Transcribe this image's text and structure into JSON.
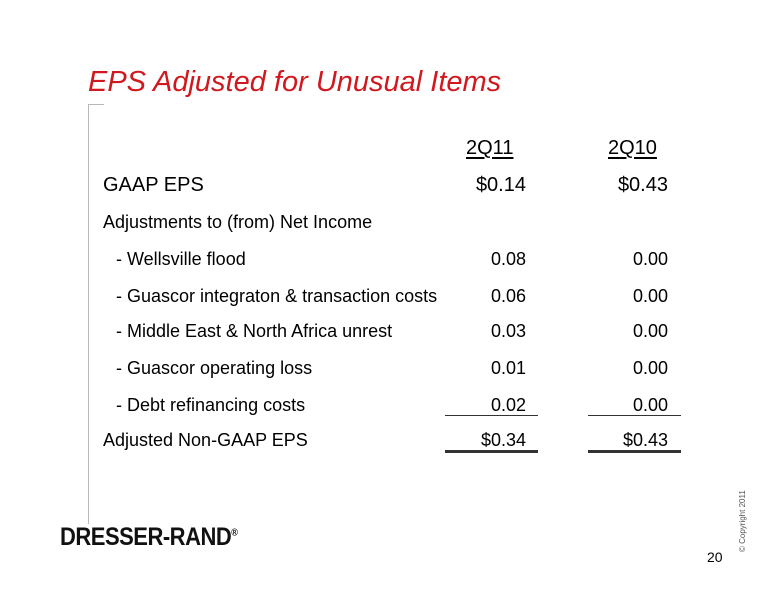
{
  "title": "EPS Adjusted for Unusual Items",
  "columns": [
    "2Q11",
    "2Q10"
  ],
  "gaap": {
    "label": "GAAP EPS",
    "v1": "$0.14",
    "v2": "$0.43"
  },
  "adjustments_header": "Adjustments to (from) Net Income",
  "items": [
    {
      "label": "- Wellsville flood",
      "v1": "0.08",
      "v2": "0.00"
    },
    {
      "label": "- Guascor integraton & transaction costs",
      "v1": "0.06",
      "v2": "0.00"
    },
    {
      "label": "- Middle East & North Africa unrest",
      "v1": "0.03",
      "v2": "0.00"
    },
    {
      "label": "- Guascor operating loss",
      "v1": "0.01",
      "v2": "0.00"
    },
    {
      "label": "- Debt refinancing costs",
      "v1": "0.02",
      "v2": "0.00"
    }
  ],
  "adjusted": {
    "label": "Adjusted Non-GAAP EPS",
    "v1": "$0.34",
    "v2": "$0.43"
  },
  "logo": {
    "name": "DRESSER-RAND",
    "mark": "®"
  },
  "copyright": "© Copyright 2011",
  "page_number": "20"
}
